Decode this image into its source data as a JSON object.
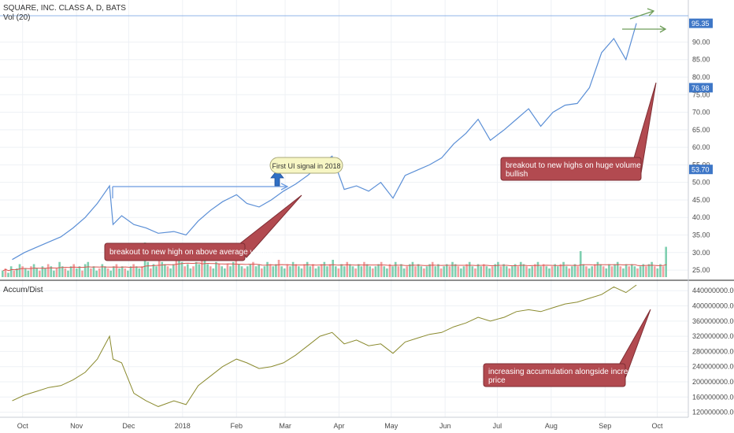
{
  "header": {
    "symbol_line": "SQUARE, INC. CLASS A, D, BATS",
    "volume_label": "Vol (20)",
    "indicator_label": "Accum/Dist"
  },
  "colors": {
    "price_line": "#5b8fd6",
    "ad_line": "#8a8a2e",
    "vol_up": "#7fcfb0",
    "vol_down": "#f2a0a0",
    "vol_ma": "#d9534f",
    "callout_fill": "#b24a50",
    "badge_fill": "#3e77c7",
    "grid": "#eef1f5",
    "signal_note_fill": "#f7f6c4",
    "arrow_up": "#2f6fc4",
    "arrow_green": "#6f9e5a"
  },
  "chart_data": [
    {
      "type": "line",
      "panel": "price",
      "ylim": [
        23.0,
        97.5
      ],
      "yticks": [
        25.0,
        30.0,
        35.0,
        40.0,
        45.0,
        50.0,
        55.0,
        60.0,
        65.0,
        70.0,
        75.0,
        80.0,
        85.0,
        90.0
      ],
      "ytick_labels": [
        "25.00",
        "30.00",
        "35.00",
        "40.00",
        "45.00",
        "50.00",
        "55.00",
        "60.00",
        "65.00",
        "70.00",
        "75.00",
        "80.00",
        "85.00",
        "90.00"
      ],
      "price_badges": [
        {
          "label": "95.35",
          "value": 95.35
        },
        {
          "label": "76.98",
          "value": 76.98
        },
        {
          "label": "53.70",
          "value": 53.7
        }
      ],
      "x_labels": [
        "Oct",
        "Nov",
        "Dec",
        "2018",
        "Feb",
        "Mar",
        "Apr",
        "May",
        "Jun",
        "Jul",
        "Aug",
        "Sep",
        "Oct"
      ],
      "x": [
        "2017-09-25",
        "2017-10-02",
        "2017-10-09",
        "2017-10-16",
        "2017-10-23",
        "2017-10-30",
        "2017-11-06",
        "2017-11-13",
        "2017-11-20",
        "2017-11-22",
        "2017-11-27",
        "2017-12-04",
        "2017-12-11",
        "2017-12-18",
        "2017-12-27",
        "2018-01-03",
        "2018-01-10",
        "2018-01-17",
        "2018-01-24",
        "2018-02-01",
        "2018-02-07",
        "2018-02-14",
        "2018-02-21",
        "2018-02-28",
        "2018-03-07",
        "2018-03-14",
        "2018-03-21",
        "2018-03-28",
        "2018-04-04",
        "2018-04-11",
        "2018-04-18",
        "2018-04-25",
        "2018-05-02",
        "2018-05-09",
        "2018-05-16",
        "2018-05-23",
        "2018-05-30",
        "2018-06-06",
        "2018-06-13",
        "2018-06-20",
        "2018-06-27",
        "2018-07-05",
        "2018-07-12",
        "2018-07-19",
        "2018-07-26",
        "2018-08-02",
        "2018-08-09",
        "2018-08-16",
        "2018-08-23",
        "2018-08-30",
        "2018-09-06",
        "2018-09-13",
        "2018-09-19"
      ],
      "series": [
        {
          "values": [
            28.0,
            30.0,
            31.5,
            33.0,
            34.5,
            37.0,
            40.0,
            44.0,
            49.0,
            38.0,
            40.5,
            38.0,
            37.0,
            35.5,
            36.0,
            35.0,
            39.0,
            42.0,
            44.5,
            46.5,
            44.0,
            43.0,
            45.0,
            47.5,
            49.5,
            52.0,
            55.0,
            57.5,
            48.0,
            49.0,
            47.5,
            50.0,
            45.5,
            52.0,
            53.5,
            55.0,
            57.0,
            61.0,
            64.0,
            68.0,
            62.0,
            65.0,
            68.0,
            71.0,
            66.0,
            70.0,
            72.0,
            72.5,
            77.0,
            87.0,
            91.0,
            85.0,
            95.35
          ]
        }
      ]
    },
    {
      "type": "bar",
      "panel": "volume",
      "series": [
        {
          "name": "volume",
          "values": [
            3,
            4,
            2,
            5,
            3,
            4,
            6,
            5,
            4,
            3,
            5,
            6,
            4,
            3,
            5,
            4,
            6,
            5,
            3,
            4,
            7,
            5,
            4,
            3,
            5,
            6,
            4,
            5,
            3,
            6,
            7,
            4,
            5,
            3,
            4,
            6,
            5,
            4,
            3,
            5,
            6,
            4,
            5,
            4,
            3,
            5,
            6,
            5,
            4,
            5,
            16,
            7,
            4,
            6,
            5,
            8,
            7,
            6,
            5,
            4,
            6,
            8,
            9,
            7,
            5,
            6,
            4,
            5,
            7,
            6,
            8,
            9,
            6,
            5,
            4,
            7,
            6,
            5,
            4,
            6,
            5,
            7,
            8,
            6,
            5,
            4,
            5,
            6,
            7,
            5,
            6,
            4,
            5,
            7,
            6,
            5,
            6,
            8,
            5,
            4,
            6,
            5,
            7,
            6,
            5,
            4,
            6,
            7,
            5,
            6,
            4,
            5,
            6,
            7,
            5,
            6,
            8,
            5,
            4,
            6,
            5,
            7,
            6,
            5,
            4,
            6,
            5,
            7,
            6,
            5,
            4,
            5,
            6,
            7,
            5,
            4,
            6,
            5,
            7,
            5,
            6,
            4,
            5,
            6,
            7,
            5,
            6,
            5,
            4,
            5,
            6,
            7,
            5,
            6,
            4,
            5,
            6,
            5,
            7,
            6,
            5,
            4,
            5,
            6,
            7,
            5,
            4,
            6,
            5,
            6,
            5,
            4,
            5,
            6,
            7,
            5,
            6,
            5,
            4,
            5,
            6,
            5,
            7,
            6,
            5,
            4,
            5,
            6,
            7,
            5,
            6,
            5,
            4,
            5,
            6,
            5,
            6,
            7,
            5,
            4,
            5,
            6,
            5,
            12,
            6,
            5,
            4,
            5,
            6,
            7,
            6,
            5,
            4,
            6,
            5,
            6,
            7,
            5,
            4,
            6,
            5,
            6,
            5,
            4,
            5,
            6,
            5,
            6,
            7,
            5,
            4,
            6,
            5,
            14
          ]
        }
      ]
    },
    {
      "type": "line",
      "panel": "accum_dist",
      "ylim": [
        115000000,
        455000000
      ],
      "yticks": [
        120000000,
        160000000,
        200000000,
        240000000,
        280000000,
        320000000,
        360000000,
        400000000,
        440000000
      ],
      "ytick_labels": [
        "120000000.0000",
        "160000000.0000",
        "200000000.0000",
        "240000000.0000",
        "280000000.0000",
        "320000000.0000",
        "360000000.0000",
        "400000000.0000",
        "440000000.0000"
      ],
      "x": [
        "2017-09-25",
        "2017-10-02",
        "2017-10-09",
        "2017-10-16",
        "2017-10-23",
        "2017-10-30",
        "2017-11-06",
        "2017-11-13",
        "2017-11-20",
        "2017-11-22",
        "2017-11-27",
        "2017-12-04",
        "2017-12-11",
        "2017-12-18",
        "2017-12-27",
        "2018-01-03",
        "2018-01-10",
        "2018-01-17",
        "2018-01-24",
        "2018-02-01",
        "2018-02-07",
        "2018-02-14",
        "2018-02-21",
        "2018-02-28",
        "2018-03-07",
        "2018-03-14",
        "2018-03-21",
        "2018-03-28",
        "2018-04-04",
        "2018-04-11",
        "2018-04-18",
        "2018-04-25",
        "2018-05-02",
        "2018-05-09",
        "2018-05-16",
        "2018-05-23",
        "2018-05-30",
        "2018-06-06",
        "2018-06-13",
        "2018-06-20",
        "2018-06-27",
        "2018-07-05",
        "2018-07-12",
        "2018-07-19",
        "2018-07-26",
        "2018-08-02",
        "2018-08-09",
        "2018-08-16",
        "2018-08-23",
        "2018-08-30",
        "2018-09-06",
        "2018-09-13",
        "2018-09-19"
      ],
      "series": [
        {
          "values": [
            150000000,
            165000000,
            175000000,
            185000000,
            190000000,
            205000000,
            225000000,
            260000000,
            320000000,
            260000000,
            250000000,
            170000000,
            150000000,
            135000000,
            150000000,
            140000000,
            190000000,
            215000000,
            240000000,
            260000000,
            250000000,
            235000000,
            240000000,
            250000000,
            270000000,
            295000000,
            320000000,
            330000000,
            300000000,
            310000000,
            295000000,
            300000000,
            275000000,
            305000000,
            315000000,
            325000000,
            330000000,
            345000000,
            355000000,
            370000000,
            360000000,
            370000000,
            385000000,
            390000000,
            385000000,
            395000000,
            405000000,
            410000000,
            420000000,
            430000000,
            450000000,
            435000000,
            455000000
          ]
        }
      ]
    }
  ],
  "annotations": {
    "signal_note": "First UI signal in 2018",
    "callout_1": "breakout to new high on above average volume",
    "callout_2": "breakout to new highs on huge volume is bullish",
    "callout_3": "increasing accumulation alongside increasing price"
  }
}
